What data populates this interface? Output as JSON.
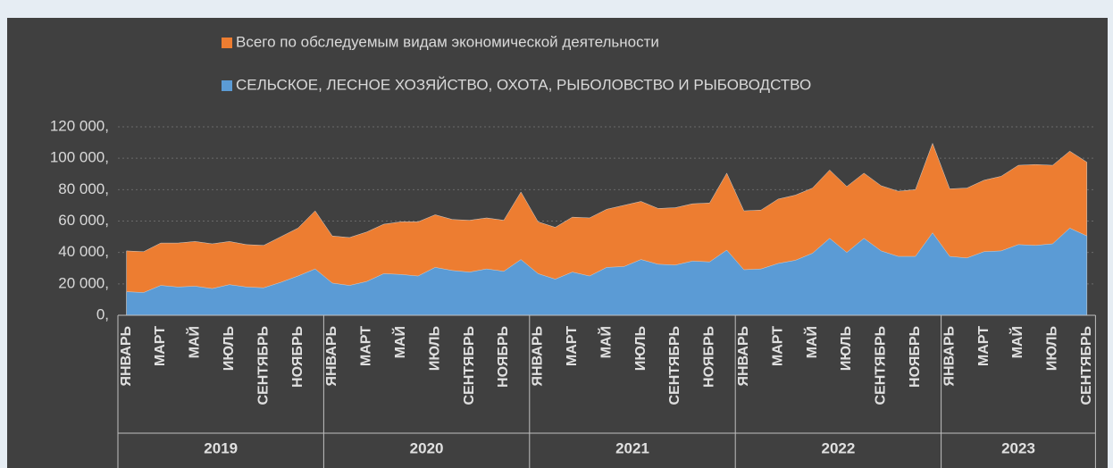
{
  "chart_data": {
    "type": "area",
    "categories": [
      "ЯНВАРЬ",
      null,
      "МАРТ",
      null,
      "МАЙ",
      null,
      "ИЮЛЬ",
      null,
      "СЕНТЯБРЬ",
      null,
      "НОЯБРЬ",
      null,
      "ЯНВАРЬ",
      null,
      "МАРТ",
      null,
      "МАЙ",
      null,
      "ИЮЛЬ",
      null,
      "СЕНТЯБРЬ",
      null,
      "НОЯБРЬ",
      null,
      "ЯНВАРЬ",
      null,
      "МАРТ",
      null,
      "МАЙ",
      null,
      "ИЮЛЬ",
      null,
      "СЕНТЯБРЬ",
      null,
      "НОЯБРЬ",
      null,
      "ЯНВАРЬ",
      null,
      "МАРТ",
      null,
      "МАЙ",
      null,
      "ИЮЛЬ",
      null,
      "СЕНТЯБРЬ",
      null,
      "НОЯБРЬ",
      null,
      "ЯНВАРЬ",
      null,
      "МАРТ",
      null,
      "МАЙ",
      null,
      "ИЮЛЬ",
      null,
      "СЕНТЯБРЬ"
    ],
    "years": [
      "2019",
      "2020",
      "2021",
      "2022",
      "2023"
    ],
    "series": [
      {
        "name": "Всего по обследуемым видам экономической деятельности",
        "color": "#ed7d31",
        "values": [
          41000,
          40500,
          46000,
          46000,
          47000,
          45500,
          47000,
          45000,
          44500,
          50000,
          55500,
          66500,
          50500,
          49500,
          53000,
          58000,
          59500,
          59500,
          64000,
          61000,
          60500,
          62000,
          60500,
          78500,
          59500,
          56000,
          62500,
          62000,
          67500,
          70000,
          72500,
          68000,
          68500,
          71000,
          71500,
          90500,
          66500,
          67000,
          74000,
          76500,
          81000,
          92500,
          82000,
          90500,
          82500,
          79000,
          80000,
          109500,
          80500,
          81000,
          86000,
          88500,
          95500,
          96000,
          95500,
          104500,
          97500
        ]
      },
      {
        "name": "СЕЛЬСКОЕ, ЛЕСНОЕ ХОЗЯЙСТВО, ОХОТА, РЫБОЛОВСТВО И РЫБОВОДСТВО",
        "color": "#5b9bd5",
        "values": [
          15000,
          14500,
          19000,
          18000,
          18500,
          17000,
          19500,
          18000,
          17500,
          21000,
          25000,
          29500,
          20500,
          19000,
          21500,
          26500,
          26000,
          25000,
          30500,
          28500,
          27500,
          29500,
          28000,
          35500,
          26500,
          23000,
          27500,
          25000,
          30500,
          31000,
          35500,
          32500,
          32000,
          34500,
          34000,
          41500,
          29000,
          29500,
          33000,
          35000,
          39500,
          49000,
          40000,
          49000,
          41000,
          37500,
          37500,
          52500,
          37500,
          36500,
          40500,
          41000,
          45000,
          44500,
          45500,
          55500,
          50500
        ]
      }
    ],
    "ylim": [
      0,
      120000
    ],
    "yticks": [
      {
        "value": 0,
        "label": "0,"
      },
      {
        "value": 20000,
        "label": "20 000,"
      },
      {
        "value": 40000,
        "label": "40 000,"
      },
      {
        "value": 60000,
        "label": "60 000,"
      },
      {
        "value": 80000,
        "label": "80 000,"
      },
      {
        "value": 100000,
        "label": "100 000,"
      },
      {
        "value": 120000,
        "label": "120 000,"
      }
    ],
    "grid": true
  }
}
